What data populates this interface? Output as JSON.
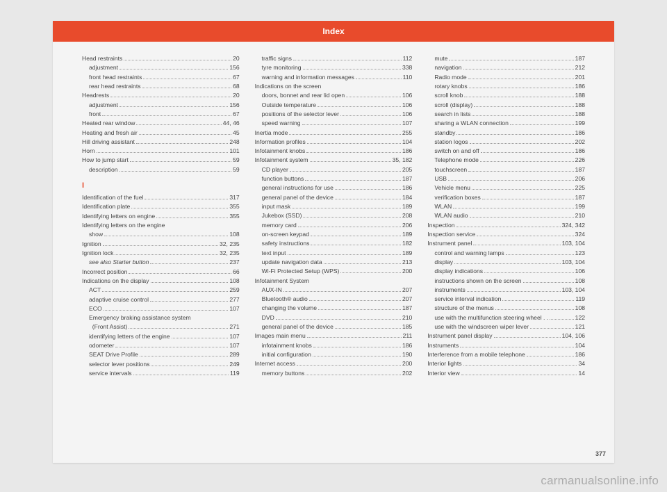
{
  "header": "Index",
  "pageNumber": "377",
  "watermark": "carmanualsonline.info",
  "columns": [
    [
      {
        "t": "e",
        "label": "Head restraints",
        "pg": "20"
      },
      {
        "t": "s",
        "label": "adjustment",
        "pg": "156"
      },
      {
        "t": "s",
        "label": "front head restraints",
        "pg": "67"
      },
      {
        "t": "s",
        "label": "rear head restraints",
        "pg": "68"
      },
      {
        "t": "e",
        "label": "Headrests",
        "pg": "20"
      },
      {
        "t": "s",
        "label": "adjustment",
        "pg": "156"
      },
      {
        "t": "s",
        "label": "front",
        "pg": "67"
      },
      {
        "t": "e",
        "label": "Heated rear window",
        "pg": "44, 46"
      },
      {
        "t": "e",
        "label": "Heating and fresh air",
        "pg": "45"
      },
      {
        "t": "e",
        "label": "Hill driving assistant",
        "pg": "248"
      },
      {
        "t": "e",
        "label": "Horn",
        "pg": "101"
      },
      {
        "t": "e",
        "label": "How to jump start",
        "pg": "59"
      },
      {
        "t": "s",
        "label": "description",
        "pg": "59"
      },
      {
        "t": "section",
        "label": "I"
      },
      {
        "t": "e",
        "label": "Identification of the fuel",
        "pg": "317"
      },
      {
        "t": "e",
        "label": "Identification plate",
        "pg": "355"
      },
      {
        "t": "e",
        "label": "Identifying letters on engine",
        "pg": "355"
      },
      {
        "t": "e",
        "label": "Identifying letters on the engine",
        "pg": ""
      },
      {
        "t": "s",
        "label": "show",
        "pg": "108"
      },
      {
        "t": "e",
        "label": "Ignition",
        "pg": "32, 235"
      },
      {
        "t": "e",
        "label": "Ignition lock",
        "pg": "32, 235"
      },
      {
        "t": "s",
        "italic": true,
        "label": "see also Starter button",
        "pg": "237"
      },
      {
        "t": "e",
        "label": "Incorrect position",
        "pg": "66"
      },
      {
        "t": "e",
        "label": "Indications on the display",
        "pg": "108"
      },
      {
        "t": "s",
        "label": "ACT",
        "pg": "259"
      },
      {
        "t": "s",
        "label": "adaptive cruise control",
        "pg": "277"
      },
      {
        "t": "s",
        "label": "ECO",
        "pg": "107"
      },
      {
        "t": "s",
        "label": "Emergency braking assistance system",
        "pg": ""
      },
      {
        "t": "s",
        "label": "  (Front Assist)",
        "pg": "271"
      },
      {
        "t": "s",
        "label": "identifying letters of the engine",
        "pg": "107"
      },
      {
        "t": "s",
        "label": "odometer",
        "pg": "107"
      },
      {
        "t": "s",
        "label": "SEAT Drive Profile",
        "pg": "289"
      },
      {
        "t": "s",
        "label": "selector lever positions",
        "pg": "249"
      },
      {
        "t": "s",
        "label": "service intervals",
        "pg": "119"
      }
    ],
    [
      {
        "t": "s",
        "label": "traffic signs",
        "pg": "112"
      },
      {
        "t": "s",
        "label": "tyre monitoring",
        "pg": "338"
      },
      {
        "t": "s",
        "label": "warning and information messages",
        "pg": "110"
      },
      {
        "t": "e",
        "label": "Indications on the screen",
        "pg": ""
      },
      {
        "t": "s",
        "label": "doors, bonnet and rear lid open",
        "pg": "106"
      },
      {
        "t": "s",
        "label": "Outside temperature",
        "pg": "106"
      },
      {
        "t": "s",
        "label": "positions of the selector lever",
        "pg": "106"
      },
      {
        "t": "s",
        "label": "speed warning",
        "pg": "107"
      },
      {
        "t": "e",
        "label": "Inertia mode",
        "pg": "255"
      },
      {
        "t": "e",
        "label": "Information profiles",
        "pg": "104"
      },
      {
        "t": "e",
        "label": "Infotainment knobs",
        "pg": "186"
      },
      {
        "t": "e",
        "label": "Infotainment system",
        "pg": "35, 182"
      },
      {
        "t": "s",
        "label": "CD player",
        "pg": "205"
      },
      {
        "t": "s",
        "label": "function buttons",
        "pg": "187"
      },
      {
        "t": "s",
        "label": "general instructions for use",
        "pg": "186"
      },
      {
        "t": "s",
        "label": "general panel of the device",
        "pg": "184"
      },
      {
        "t": "s",
        "label": "input mask",
        "pg": "189"
      },
      {
        "t": "s",
        "label": "Jukebox (SSD)",
        "pg": "208"
      },
      {
        "t": "s",
        "label": "memory card",
        "pg": "206"
      },
      {
        "t": "s",
        "label": "on-screen keypad",
        "pg": "189"
      },
      {
        "t": "s",
        "label": "safety instructions",
        "pg": "182"
      },
      {
        "t": "s",
        "label": "text input",
        "pg": "189"
      },
      {
        "t": "s",
        "label": "update navigation data",
        "pg": "213"
      },
      {
        "t": "s",
        "label": "Wi-Fi Protected Setup (WPS)",
        "pg": "200"
      },
      {
        "t": "e",
        "label": "Infotainment System",
        "pg": ""
      },
      {
        "t": "s",
        "label": "AUX-IN",
        "pg": "207"
      },
      {
        "t": "s",
        "label": "Bluetooth® audio",
        "pg": "207"
      },
      {
        "t": "s",
        "label": "changing the volume",
        "pg": "187"
      },
      {
        "t": "s",
        "label": "DVD",
        "pg": "210"
      },
      {
        "t": "s",
        "label": "general panel of the device",
        "pg": "185"
      },
      {
        "t": "e",
        "label": "Images main menu",
        "pg": "211"
      },
      {
        "t": "s",
        "label": "infotainment knobs",
        "pg": "186"
      },
      {
        "t": "s",
        "label": "initial configuration",
        "pg": "190"
      },
      {
        "t": "e",
        "label": "Internet access",
        "pg": "200"
      },
      {
        "t": "s",
        "label": "memory buttons",
        "pg": "202"
      }
    ],
    [
      {
        "t": "s",
        "label": "mute",
        "pg": "187"
      },
      {
        "t": "s",
        "label": "navigation",
        "pg": "212"
      },
      {
        "t": "s",
        "label": "Radio mode",
        "pg": "201"
      },
      {
        "t": "s",
        "label": "rotary knobs",
        "pg": "186"
      },
      {
        "t": "s",
        "label": "scroll knob",
        "pg": "188"
      },
      {
        "t": "s",
        "label": "scroll (display)",
        "pg": "188"
      },
      {
        "t": "s",
        "label": "search in lists",
        "pg": "188"
      },
      {
        "t": "s",
        "label": "sharing a WLAN connection",
        "pg": "199"
      },
      {
        "t": "s",
        "label": "standby",
        "pg": "186"
      },
      {
        "t": "s",
        "label": "station logos",
        "pg": "202"
      },
      {
        "t": "s",
        "label": "switch on and off",
        "pg": "186"
      },
      {
        "t": "s",
        "label": "Telephone mode",
        "pg": "226"
      },
      {
        "t": "s",
        "label": "touchscreen",
        "pg": "187"
      },
      {
        "t": "s",
        "label": "USB",
        "pg": "206"
      },
      {
        "t": "s",
        "label": "Vehicle menu",
        "pg": "225"
      },
      {
        "t": "s",
        "label": "verification boxes",
        "pg": "187"
      },
      {
        "t": "s",
        "label": "WLAN",
        "pg": "199"
      },
      {
        "t": "s",
        "label": "WLAN audio",
        "pg": "210"
      },
      {
        "t": "e",
        "label": "Inspection",
        "pg": "324, 342"
      },
      {
        "t": "e",
        "label": "Inspection service",
        "pg": "324"
      },
      {
        "t": "e",
        "label": "Instrument panel",
        "pg": "103, 104"
      },
      {
        "t": "s",
        "label": "control and warning lamps",
        "pg": "123"
      },
      {
        "t": "s",
        "label": "display",
        "pg": "103, 104"
      },
      {
        "t": "s",
        "label": "display indications",
        "pg": "106"
      },
      {
        "t": "s",
        "label": "instructions shown on the screen",
        "pg": "108"
      },
      {
        "t": "s",
        "label": "instruments",
        "pg": "103, 104"
      },
      {
        "t": "s",
        "label": "service interval indication",
        "pg": "119"
      },
      {
        "t": "s",
        "label": "structure of the menus",
        "pg": "108"
      },
      {
        "t": "s",
        "label": "use with the multifunction steering wheel . .",
        "pg": "122"
      },
      {
        "t": "s",
        "label": "use with the windscreen wiper lever",
        "pg": "121"
      },
      {
        "t": "e",
        "label": "Instrument panel display",
        "pg": "104, 106"
      },
      {
        "t": "e",
        "label": "Instruments",
        "pg": "104"
      },
      {
        "t": "e",
        "label": "Interference from a mobile telephone",
        "pg": "186"
      },
      {
        "t": "e",
        "label": "Interior lights",
        "pg": "34"
      },
      {
        "t": "e",
        "label": "Interior view",
        "pg": "14"
      }
    ]
  ]
}
